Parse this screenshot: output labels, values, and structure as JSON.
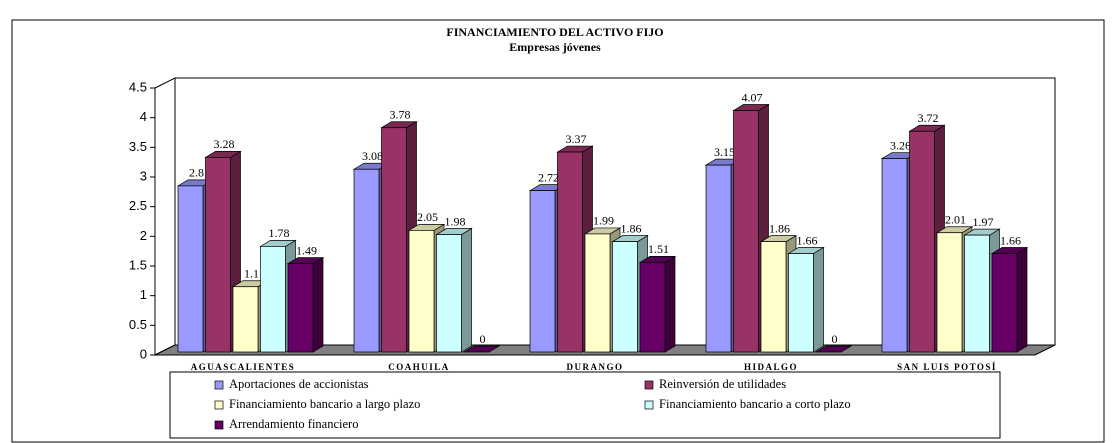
{
  "chart_data": {
    "type": "bar3d",
    "title": "FINANCIAMIENTO DEL ACTIVO FIJO",
    "subtitle": "Empresas jóvenes",
    "categories": [
      "AGUASCALIENTES",
      "COAHUILA",
      "DURANGO",
      "HIDALGO",
      "SAN LUIS POTOSÍ"
    ],
    "series": [
      {
        "name": "Aportaciones de accionistas",
        "color": "#9999ff",
        "values": [
          2.8,
          3.08,
          2.72,
          3.15,
          3.26
        ]
      },
      {
        "name": "Reinversión de utilidades",
        "color": "#993366",
        "values": [
          3.28,
          3.78,
          3.37,
          4.07,
          3.72
        ]
      },
      {
        "name": "Financiamiento bancario a largo plazo",
        "color": "#ffffcc",
        "values": [
          1.1,
          2.05,
          1.99,
          1.86,
          2.01
        ]
      },
      {
        "name": "Financiamiento bancario a corto plazo",
        "color": "#ccffff",
        "values": [
          1.78,
          1.98,
          1.86,
          1.66,
          1.97
        ]
      },
      {
        "name": "Arrendamiento financiero",
        "color": "#660066",
        "values": [
          1.49,
          0,
          1.51,
          0,
          1.66
        ]
      }
    ],
    "ylim": [
      0,
      4.5
    ],
    "yticks": [
      0,
      0.5,
      1,
      1.5,
      2,
      2.5,
      3,
      3.5,
      4,
      4.5
    ],
    "grid": false
  }
}
